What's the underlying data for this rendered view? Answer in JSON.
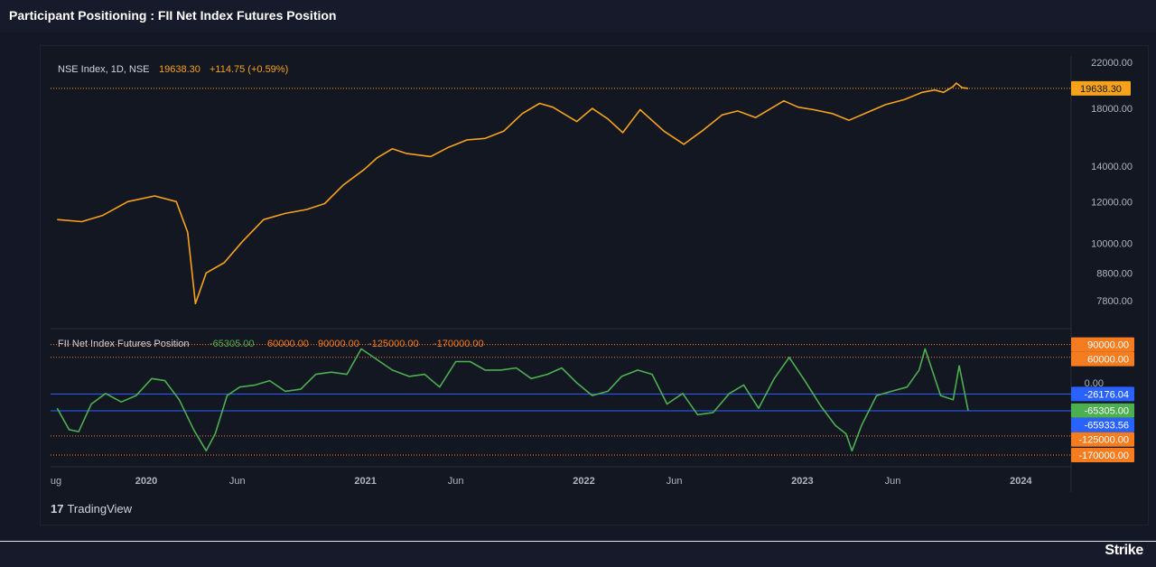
{
  "page": {
    "title": "Participant Positioning : FII Net Index Futures Position",
    "brand": "Strike",
    "watermark": "TradingView",
    "watermark_logo": "17"
  },
  "chart_data": [
    {
      "type": "line",
      "legend": {
        "symbol": "NSE Index, 1D, NSE",
        "price": "19638.30",
        "change": "+114.75 (+0.59%)"
      },
      "x_ticks": [
        "ug",
        "2020",
        "Jun",
        "2021",
        "Jun",
        "2022",
        "Jun",
        "2023",
        "Jun",
        "2024"
      ],
      "y_ticks": [
        "22000.00",
        "18000.00",
        "14000.00",
        "12000.00",
        "10000.00",
        "8800.00",
        "7800.00"
      ],
      "y_tick_values": [
        22000,
        18000,
        14000,
        12000,
        10000,
        8800,
        7800
      ],
      "y_scale": "log",
      "last_value_label": "19638.30",
      "last_value": 19638.3,
      "color": "#f7a21b",
      "series": [
        {
          "x": [
            "2019-08-05",
            "2019-09-15",
            "2019-10-20",
            "2019-12-01",
            "2020-01-15",
            "2020-02-20",
            "2020-03-10",
            "2020-03-23",
            "2020-04-10",
            "2020-05-10",
            "2020-06-10",
            "2020-07-15",
            "2020-08-20",
            "2020-09-25",
            "2020-10-25",
            "2020-11-25",
            "2020-12-30",
            "2021-01-20",
            "2021-02-15",
            "2021-03-10",
            "2021-04-20",
            "2021-05-20",
            "2021-06-20",
            "2021-07-20",
            "2021-08-20",
            "2021-09-20",
            "2021-10-19",
            "2021-11-10",
            "2021-12-20",
            "2022-01-15",
            "2022-02-10",
            "2022-03-07",
            "2022-04-05",
            "2022-05-15",
            "2022-06-17",
            "2022-07-20",
            "2022-08-20",
            "2022-09-15",
            "2022-10-15",
            "2022-12-01",
            "2022-12-25",
            "2023-01-20",
            "2023-02-20",
            "2023-03-20",
            "2023-04-20",
            "2023-05-20",
            "2023-06-20",
            "2023-07-20",
            "2023-08-10",
            "2023-08-25",
            "2023-09-10",
            "2023-09-15",
            "2023-09-25",
            "2023-10-05"
          ],
          "y": [
            11100,
            11000,
            11300,
            12000,
            12300,
            12000,
            10500,
            7700,
            8800,
            9200,
            10100,
            11100,
            11400,
            11600,
            11900,
            12900,
            13800,
            14500,
            15100,
            14800,
            14600,
            15200,
            15700,
            15800,
            16300,
            17600,
            18400,
            18100,
            17000,
            18000,
            17200,
            16200,
            17900,
            16300,
            15400,
            16400,
            17500,
            17800,
            17300,
            18600,
            18100,
            17900,
            17600,
            17100,
            17700,
            18300,
            18700,
            19300,
            19500,
            19300,
            19800,
            20100,
            19700,
            19638.3
          ]
        }
      ]
    },
    {
      "type": "line",
      "legend": {
        "name": "FII Net Index Futures Position",
        "values": [
          "-65305.00",
          "60000.00",
          "90000.00",
          "-125000.00",
          "-170000.00"
        ]
      },
      "y_ticks": [
        "0.00"
      ],
      "color": "#4caf50",
      "levels": [
        {
          "label": "90000.00",
          "value": 90000,
          "color": "#f57c1f",
          "style": "dotted"
        },
        {
          "label": "60000.00",
          "value": 60000,
          "color": "#f57c1f",
          "style": "dotted"
        },
        {
          "label": "-26176.04",
          "value": -26176.04,
          "color": "#2962ff",
          "style": "solid"
        },
        {
          "label": "-65305.00",
          "value": -65305,
          "color": "#4caf50",
          "style": "none"
        },
        {
          "label": "-65933.56",
          "value": -65933.56,
          "color": "#2962ff",
          "style": "solid"
        },
        {
          "label": "-125000.00",
          "value": -125000,
          "color": "#f57c1f",
          "style": "dotted"
        },
        {
          "label": "-170000.00",
          "value": -170000,
          "color": "#f57c1f",
          "style": "dotted"
        }
      ],
      "series": [
        {
          "x": [
            "2019-08-05",
            "2019-08-25",
            "2019-09-10",
            "2019-10-01",
            "2019-10-25",
            "2019-11-20",
            "2019-12-15",
            "2020-01-10",
            "2020-02-01",
            "2020-02-25",
            "2020-03-20",
            "2020-04-10",
            "2020-04-25",
            "2020-05-15",
            "2020-06-05",
            "2020-07-01",
            "2020-07-25",
            "2020-08-20",
            "2020-09-15",
            "2020-10-10",
            "2020-11-05",
            "2020-12-01",
            "2020-12-25",
            "2021-01-20",
            "2021-02-15",
            "2021-03-15",
            "2021-04-10",
            "2021-05-05",
            "2021-06-01",
            "2021-06-25",
            "2021-07-20",
            "2021-08-15",
            "2021-09-10",
            "2021-10-05",
            "2021-11-01",
            "2021-11-25",
            "2021-12-20",
            "2022-01-15",
            "2022-02-10",
            "2022-03-05",
            "2022-04-01",
            "2022-04-25",
            "2022-05-20",
            "2022-06-15",
            "2022-07-10",
            "2022-08-05",
            "2022-09-01",
            "2022-09-25",
            "2022-10-20",
            "2022-11-15",
            "2022-12-10",
            "2023-01-05",
            "2023-02-01",
            "2023-02-25",
            "2023-03-15",
            "2023-03-25",
            "2023-04-10",
            "2023-05-05",
            "2023-05-30",
            "2023-06-25",
            "2023-07-15",
            "2023-07-25",
            "2023-08-20",
            "2023-09-10",
            "2023-09-20",
            "2023-10-05"
          ],
          "y": [
            -60000,
            -110000,
            -115000,
            -50000,
            -25000,
            -45000,
            -30000,
            10000,
            5000,
            -40000,
            -110000,
            -160000,
            -120000,
            -30000,
            -10000,
            -5000,
            5000,
            -20000,
            -15000,
            20000,
            25000,
            20000,
            80000,
            55000,
            30000,
            15000,
            20000,
            -10000,
            50000,
            50000,
            30000,
            30000,
            35000,
            10000,
            20000,
            35000,
            0,
            -30000,
            -20000,
            15000,
            30000,
            20000,
            -50000,
            -25000,
            -75000,
            -70000,
            -25000,
            -5000,
            -60000,
            10000,
            60000,
            5000,
            -55000,
            -100000,
            -120000,
            -160000,
            -100000,
            -30000,
            -20000,
            -10000,
            30000,
            80000,
            -30000,
            -40000,
            40000,
            -65305
          ]
        }
      ]
    }
  ]
}
